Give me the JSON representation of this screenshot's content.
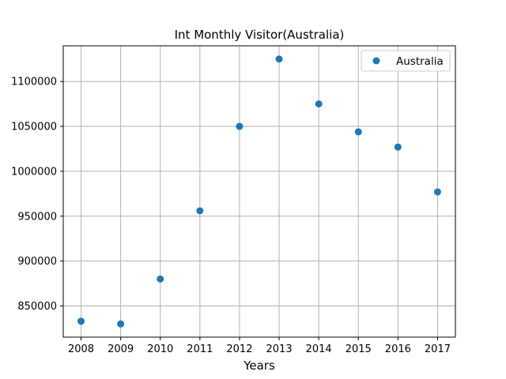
{
  "chart_data": {
    "type": "scatter",
    "title": "Int Monthly Visitor(Australia)",
    "xlabel": "Years",
    "ylabel": "",
    "x": [
      2008,
      2009,
      2010,
      2011,
      2012,
      2013,
      2014,
      2015,
      2016,
      2017
    ],
    "series": [
      {
        "name": "Australia",
        "color": "#1f77b4",
        "values": [
          833000,
          830000,
          880000,
          956000,
          1050000,
          1125000,
          1075000,
          1044000,
          1027000,
          977000
        ]
      }
    ],
    "xticks": [
      "2008",
      "2009",
      "2010",
      "2011",
      "2012",
      "2013",
      "2014",
      "2015",
      "2016",
      "2017"
    ],
    "yticks": [
      "850000",
      "900000",
      "950000",
      "1000000",
      "1050000",
      "1100000"
    ],
    "ytick_values": [
      850000,
      900000,
      950000,
      1000000,
      1050000,
      1100000
    ],
    "xlim": [
      2007.55,
      2017.45
    ],
    "ylim": [
      815250,
      1139750
    ],
    "grid": true,
    "legend_position": "top-right"
  }
}
